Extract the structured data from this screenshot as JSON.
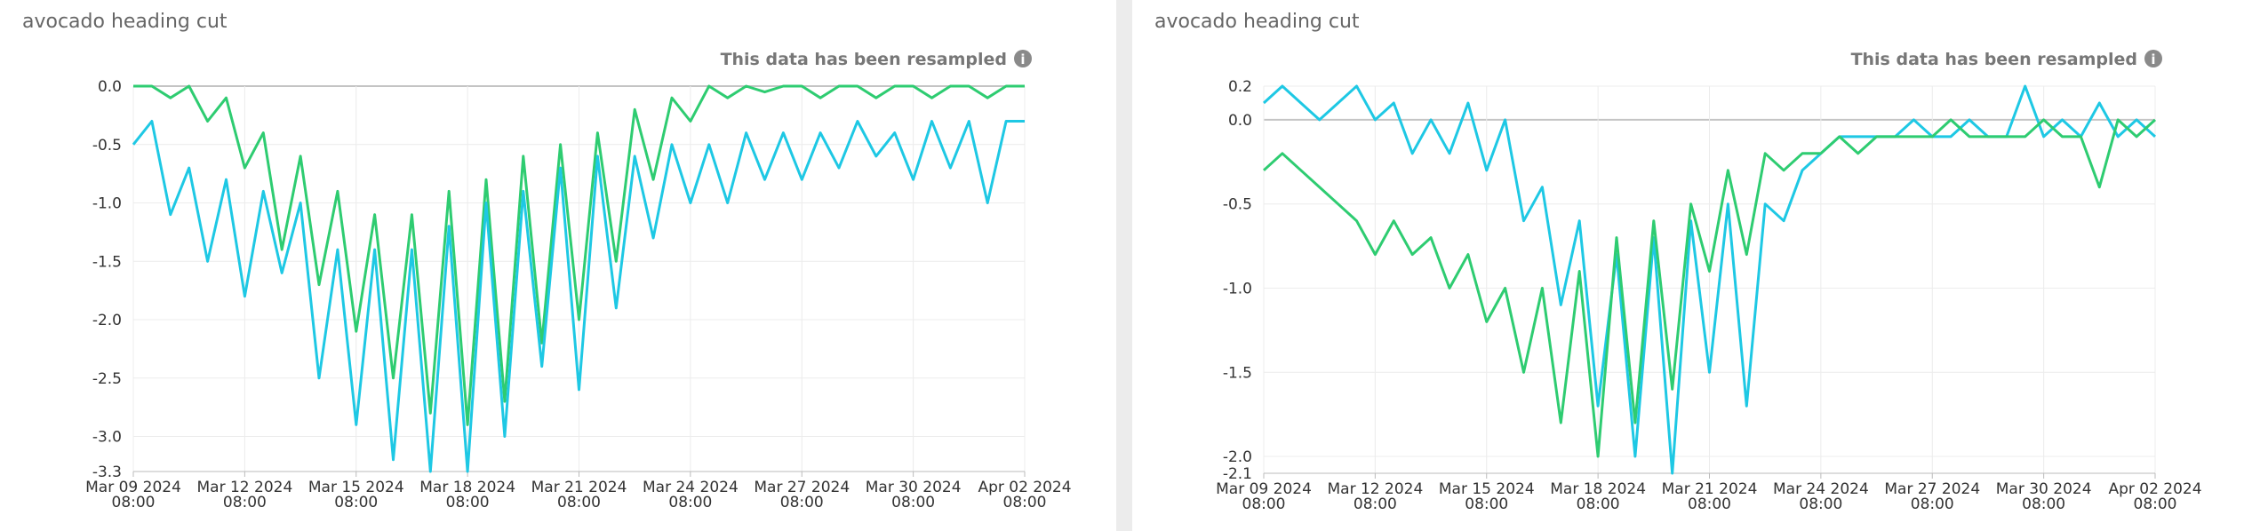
{
  "chart_data": [
    {
      "type": "line",
      "title": "avocado heading cut",
      "note": "This data has been resampled",
      "x": [
        "2024-03-09 08:00",
        "2024-03-09 20:00",
        "2024-03-10 08:00",
        "2024-03-10 20:00",
        "2024-03-11 08:00",
        "2024-03-11 20:00",
        "2024-03-12 08:00",
        "2024-03-12 20:00",
        "2024-03-13 08:00",
        "2024-03-13 20:00",
        "2024-03-14 08:00",
        "2024-03-14 20:00",
        "2024-03-15 08:00",
        "2024-03-15 20:00",
        "2024-03-16 08:00",
        "2024-03-16 20:00",
        "2024-03-17 08:00",
        "2024-03-17 20:00",
        "2024-03-18 08:00",
        "2024-03-18 20:00",
        "2024-03-19 08:00",
        "2024-03-19 20:00",
        "2024-03-20 08:00",
        "2024-03-20 20:00",
        "2024-03-21 08:00",
        "2024-03-21 20:00",
        "2024-03-22 08:00",
        "2024-03-22 20:00",
        "2024-03-23 08:00",
        "2024-03-23 20:00",
        "2024-03-24 08:00",
        "2024-03-24 20:00",
        "2024-03-25 08:00",
        "2024-03-25 20:00",
        "2024-03-26 08:00",
        "2024-03-26 20:00",
        "2024-03-27 08:00",
        "2024-03-27 20:00",
        "2024-03-28 08:00",
        "2024-03-28 20:00",
        "2024-03-29 08:00",
        "2024-03-29 20:00",
        "2024-03-30 08:00",
        "2024-03-30 20:00",
        "2024-03-31 08:00",
        "2024-03-31 20:00",
        "2024-04-01 08:00",
        "2024-04-01 20:00",
        "2024-04-02 08:00"
      ],
      "xlim": [
        "2024-03-09 08:00",
        "2024-04-02 08:00"
      ],
      "xticks": [
        {
          "value": "2024-03-09 08:00",
          "label": "Mar 09 2024\n08:00"
        },
        {
          "value": "2024-03-12 08:00",
          "label": "Mar 12 2024\n08:00"
        },
        {
          "value": "2024-03-15 08:00",
          "label": "Mar 15 2024\n08:00"
        },
        {
          "value": "2024-03-18 08:00",
          "label": "Mar 18 2024\n08:00"
        },
        {
          "value": "2024-03-21 08:00",
          "label": "Mar 21 2024\n08:00"
        },
        {
          "value": "2024-03-24 08:00",
          "label": "Mar 24 2024\n08:00"
        },
        {
          "value": "2024-03-27 08:00",
          "label": "Mar 27 2024\n08:00"
        },
        {
          "value": "2024-03-30 08:00",
          "label": "Mar 30 2024\n08:00"
        },
        {
          "value": "2024-04-02 08:00",
          "label": "Apr 02 2024\n08:00"
        }
      ],
      "ylim": [
        -3.3,
        0
      ],
      "yticks": [
        {
          "value": 0,
          "label": "0.0"
        },
        -0.5,
        {
          "value": -1,
          "label": "-1.0"
        },
        -1.5,
        {
          "value": -2,
          "label": "-2.0"
        },
        -2.5,
        {
          "value": -3,
          "label": "-3.0"
        },
        -3.3
      ],
      "grid": true,
      "series": [
        {
          "color": "#2ecc71",
          "values": [
            0,
            0,
            -0.1,
            0,
            -0.3,
            -0.1,
            -0.7,
            -0.4,
            -1.4,
            -0.6,
            -1.7,
            -0.9,
            -2.1,
            -1.1,
            -2.5,
            -1.1,
            -2.8,
            -0.9,
            -2.9,
            -0.8,
            -2.7,
            -0.6,
            -2.2,
            -0.5,
            -2.0,
            -0.4,
            -1.5,
            -0.2,
            -0.8,
            -0.1,
            -0.3,
            0,
            -0.1,
            0,
            -0.05,
            0,
            0,
            -0.1,
            0,
            0,
            -0.1,
            0,
            0,
            -0.1,
            0,
            0,
            -0.1,
            0,
            0
          ]
        },
        {
          "color": "#1ec8e4",
          "values": [
            -0.5,
            -0.3,
            -1.1,
            -0.7,
            -1.5,
            -0.8,
            -1.8,
            -0.9,
            -1.6,
            -1.0,
            -2.5,
            -1.4,
            -2.9,
            -1.4,
            -3.2,
            -1.4,
            -3.3,
            -1.2,
            -3.3,
            -1.0,
            -3.0,
            -0.9,
            -2.4,
            -0.7,
            -2.6,
            -0.6,
            -1.9,
            -0.6,
            -1.3,
            -0.5,
            -1.0,
            -0.5,
            -1.0,
            -0.4,
            -0.8,
            -0.4,
            -0.8,
            -0.4,
            -0.7,
            -0.3,
            -0.6,
            -0.4,
            -0.8,
            -0.3,
            -0.7,
            -0.3,
            -1.0,
            -0.3,
            -0.3
          ]
        }
      ]
    },
    {
      "type": "line",
      "title": "avocado heading cut",
      "note": "This data has been resampled",
      "x": [
        "2024-03-09 08:00",
        "2024-03-09 20:00",
        "2024-03-10 08:00",
        "2024-03-10 20:00",
        "2024-03-11 08:00",
        "2024-03-11 20:00",
        "2024-03-12 08:00",
        "2024-03-12 20:00",
        "2024-03-13 08:00",
        "2024-03-13 20:00",
        "2024-03-14 08:00",
        "2024-03-14 20:00",
        "2024-03-15 08:00",
        "2024-03-15 20:00",
        "2024-03-16 08:00",
        "2024-03-16 20:00",
        "2024-03-17 08:00",
        "2024-03-17 20:00",
        "2024-03-18 08:00",
        "2024-03-18 20:00",
        "2024-03-19 08:00",
        "2024-03-19 20:00",
        "2024-03-20 08:00",
        "2024-03-20 20:00",
        "2024-03-21 08:00",
        "2024-03-21 20:00",
        "2024-03-22 08:00",
        "2024-03-22 20:00",
        "2024-03-23 08:00",
        "2024-03-23 20:00",
        "2024-03-24 08:00",
        "2024-03-24 20:00",
        "2024-03-25 08:00",
        "2024-03-25 20:00",
        "2024-03-26 08:00",
        "2024-03-26 20:00",
        "2024-03-27 08:00",
        "2024-03-27 20:00",
        "2024-03-28 08:00",
        "2024-03-28 20:00",
        "2024-03-29 08:00",
        "2024-03-29 20:00",
        "2024-03-30 08:00",
        "2024-03-30 20:00",
        "2024-03-31 08:00",
        "2024-03-31 20:00",
        "2024-04-01 08:00",
        "2024-04-01 20:00",
        "2024-04-02 08:00"
      ],
      "xlim": [
        "2024-03-09 08:00",
        "2024-04-02 08:00"
      ],
      "xticks": [
        {
          "value": "2024-03-09 08:00",
          "label": "Mar 09 2024\n08:00"
        },
        {
          "value": "2024-03-12 08:00",
          "label": "Mar 12 2024\n08:00"
        },
        {
          "value": "2024-03-15 08:00",
          "label": "Mar 15 2024\n08:00"
        },
        {
          "value": "2024-03-18 08:00",
          "label": "Mar 18 2024\n08:00"
        },
        {
          "value": "2024-03-21 08:00",
          "label": "Mar 21 2024\n08:00"
        },
        {
          "value": "2024-03-24 08:00",
          "label": "Mar 24 2024\n08:00"
        },
        {
          "value": "2024-03-27 08:00",
          "label": "Mar 27 2024\n08:00"
        },
        {
          "value": "2024-03-30 08:00",
          "label": "Mar 30 2024\n08:00"
        },
        {
          "value": "2024-04-02 08:00",
          "label": "Apr 02 2024\n08:00"
        }
      ],
      "ylim": [
        -2.1,
        0.2
      ],
      "yticks": [
        0.2,
        {
          "value": 0,
          "label": "0.0"
        },
        -0.5,
        {
          "value": -1,
          "label": "-1.0"
        },
        -1.5,
        {
          "value": -2,
          "label": "-2.0"
        },
        -2.1
      ],
      "grid": true,
      "series": [
        {
          "color": "#1ec8e4",
          "values": [
            0.1,
            0.2,
            0.1,
            0,
            0.1,
            0.2,
            0,
            0.1,
            -0.2,
            0,
            -0.2,
            0.1,
            -0.3,
            0,
            -0.6,
            -0.4,
            -1.1,
            -0.6,
            -1.7,
            -0.8,
            -2.0,
            -0.7,
            -2.1,
            -0.6,
            -1.5,
            -0.5,
            -1.7,
            -0.5,
            -0.6,
            -0.3,
            -0.2,
            -0.1,
            -0.1,
            -0.1,
            -0.1,
            0,
            -0.1,
            -0.1,
            0,
            -0.1,
            -0.1,
            0.2,
            -0.1,
            0,
            -0.1,
            0.1,
            -0.1,
            0,
            -0.1
          ]
        },
        {
          "color": "#2ecc71",
          "values": [
            -0.3,
            -0.2,
            -0.3,
            -0.4,
            -0.5,
            -0.6,
            -0.8,
            -0.6,
            -0.8,
            -0.7,
            -1.0,
            -0.8,
            -1.2,
            -1.0,
            -1.5,
            -1.0,
            -1.8,
            -0.9,
            -2.0,
            -0.7,
            -1.8,
            -0.6,
            -1.6,
            -0.5,
            -0.9,
            -0.3,
            -0.8,
            -0.2,
            -0.3,
            -0.2,
            -0.2,
            -0.1,
            -0.2,
            -0.1,
            -0.1,
            -0.1,
            -0.1,
            0,
            -0.1,
            -0.1,
            -0.1,
            -0.1,
            0,
            -0.1,
            -0.1,
            -0.4,
            0,
            -0.1,
            0
          ]
        }
      ]
    }
  ]
}
